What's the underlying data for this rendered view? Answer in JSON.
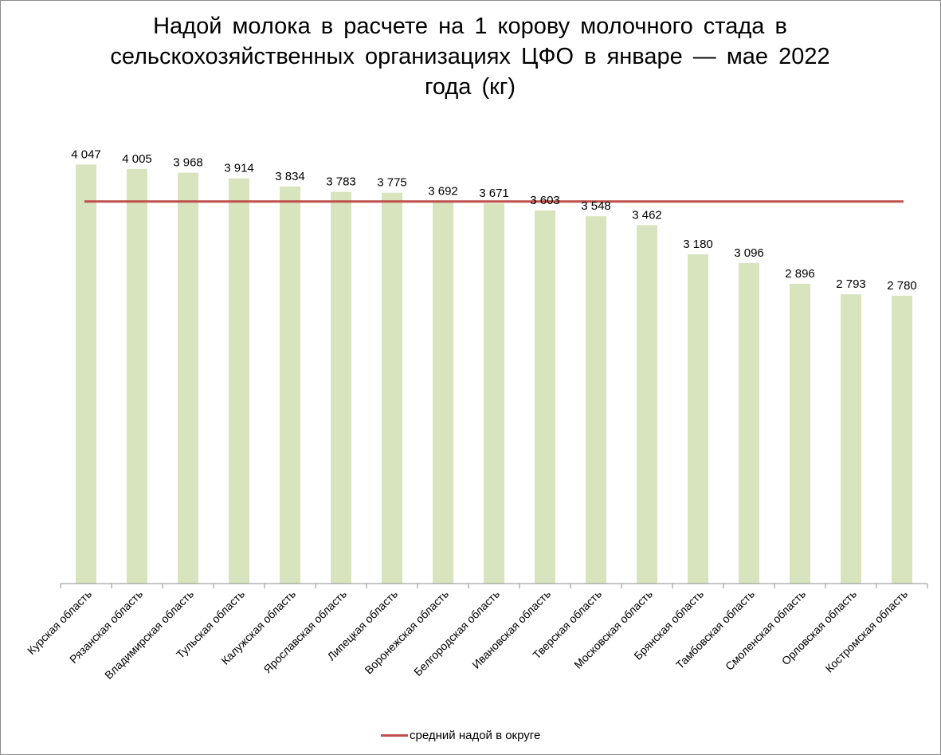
{
  "chart_data": {
    "type": "bar",
    "title": "Надой молока в расчете на 1 корову молочного стада в сельскохозяйственных организациях ЦФО в январе — мае 2022 года (кг)",
    "categories": [
      "Курская область",
      "Рязанская область",
      "Владимирская область",
      "Тульская область",
      "Калужская область",
      "Ярославская область",
      "Липецкая область",
      "Воронежская область",
      "Белгородская область",
      "Ивановская область",
      "Тверская область",
      "Московская область",
      "Брянская область",
      "Тамбовская область",
      "Смоленская область",
      "Орловская область",
      "Костромская область"
    ],
    "values": [
      4047,
      4005,
      3968,
      3914,
      3834,
      3783,
      3775,
      3692,
      3671,
      3603,
      3548,
      3462,
      3180,
      3096,
      2896,
      2793,
      2780
    ],
    "value_labels": [
      "4 047",
      "4 005",
      "3 968",
      "3 914",
      "3 834",
      "3 783",
      "3 775",
      "3 692",
      "3 671",
      "3 603",
      "3 548",
      "3 462",
      "3 180",
      "3 096",
      "2 896",
      "2 793",
      "2 780"
    ],
    "reference_line": {
      "name": "средний надой в округе",
      "value": 3690
    },
    "ylim": [
      0,
      4200
    ],
    "grid": false,
    "legend_position": "bottom",
    "colors": {
      "bar": "#d7e4bd",
      "line": "#c0504d",
      "axis": "#8c8c8c"
    }
  }
}
